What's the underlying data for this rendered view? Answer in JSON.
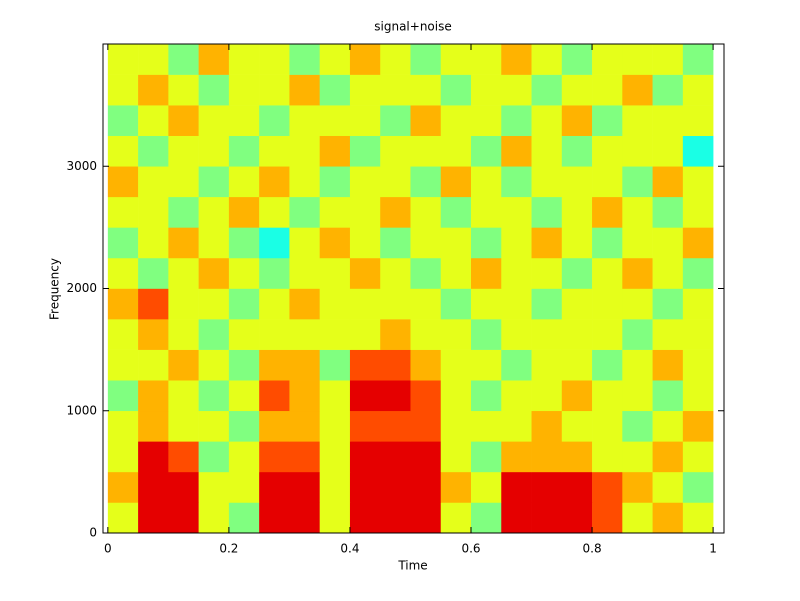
{
  "chart_data": {
    "type": "heatmap",
    "title": "signal+noise",
    "x_label": "Time",
    "y_label": "Frequency",
    "colormap": "jet",
    "zlim": [
      0,
      10
    ],
    "x": [
      0.025,
      0.075,
      0.125,
      0.175,
      0.225,
      0.275,
      0.325,
      0.375,
      0.425,
      0.475,
      0.525,
      0.575,
      0.625,
      0.675,
      0.725,
      0.775,
      0.825,
      0.875,
      0.925,
      0.975
    ],
    "y": [
      125,
      375,
      625,
      875,
      1125,
      1375,
      1625,
      1875,
      2125,
      2375,
      2625,
      2875,
      3125,
      3375,
      3625,
      3875
    ],
    "z": [
      [
        6,
        9,
        9,
        6,
        5,
        9,
        9,
        6,
        9,
        9,
        9,
        6,
        5,
        9,
        9,
        9,
        8,
        6,
        7,
        6
      ],
      [
        7,
        9,
        9,
        6,
        6,
        9,
        9,
        6,
        9,
        9,
        9,
        7,
        6,
        9,
        9,
        9,
        8,
        7,
        6,
        5
      ],
      [
        6,
        9,
        8,
        5,
        6,
        8,
        8,
        6,
        9,
        9,
        9,
        6,
        5,
        7,
        7,
        7,
        6,
        6,
        7,
        6
      ],
      [
        6,
        7,
        6,
        6,
        5,
        7,
        7,
        6,
        8,
        8,
        8,
        6,
        6,
        6,
        7,
        6,
        6,
        5,
        6,
        7
      ],
      [
        5,
        7,
        6,
        5,
        6,
        8,
        7,
        6,
        9,
        9,
        8,
        6,
        5,
        6,
        6,
        7,
        6,
        6,
        5,
        6
      ],
      [
        6,
        6,
        7,
        6,
        5,
        7,
        7,
        5,
        8,
        8,
        7,
        6,
        6,
        5,
        6,
        6,
        5,
        6,
        7,
        6
      ],
      [
        6,
        7,
        6,
        5,
        6,
        6,
        6,
        6,
        6,
        7,
        6,
        6,
        5,
        6,
        6,
        6,
        6,
        5,
        6,
        6
      ],
      [
        7,
        8,
        6,
        6,
        5,
        6,
        7,
        6,
        6,
        6,
        6,
        5,
        6,
        6,
        5,
        6,
        6,
        6,
        5,
        6
      ],
      [
        6,
        5,
        6,
        7,
        6,
        5,
        6,
        6,
        7,
        6,
        5,
        6,
        7,
        6,
        6,
        5,
        6,
        7,
        6,
        5
      ],
      [
        5,
        6,
        7,
        6,
        5,
        4,
        6,
        7,
        6,
        5,
        6,
        6,
        5,
        6,
        7,
        6,
        5,
        6,
        6,
        7
      ],
      [
        6,
        6,
        5,
        6,
        7,
        6,
        5,
        6,
        6,
        7,
        6,
        5,
        6,
        6,
        5,
        6,
        7,
        6,
        5,
        6
      ],
      [
        7,
        6,
        6,
        5,
        6,
        7,
        6,
        5,
        6,
        6,
        5,
        7,
        6,
        5,
        6,
        6,
        6,
        5,
        7,
        6
      ],
      [
        6,
        5,
        6,
        6,
        5,
        6,
        6,
        7,
        5,
        6,
        6,
        6,
        5,
        7,
        6,
        5,
        6,
        6,
        6,
        4
      ],
      [
        5,
        6,
        7,
        6,
        6,
        5,
        6,
        6,
        6,
        5,
        7,
        6,
        6,
        5,
        6,
        7,
        5,
        6,
        6,
        6
      ],
      [
        6,
        7,
        6,
        5,
        6,
        6,
        7,
        5,
        6,
        6,
        6,
        5,
        6,
        6,
        5,
        6,
        6,
        7,
        5,
        6
      ],
      [
        6,
        6,
        5,
        7,
        6,
        6,
        5,
        6,
        7,
        6,
        5,
        6,
        6,
        7,
        6,
        5,
        6,
        6,
        6,
        5
      ]
    ],
    "xlim": [
      -0.008,
      1.018
    ],
    "xticks": [
      0,
      0.2,
      0.4,
      0.6,
      0.8,
      1
    ],
    "ylim": [
      0,
      4000
    ],
    "yticks": [
      0,
      1000,
      2000,
      3000
    ]
  }
}
